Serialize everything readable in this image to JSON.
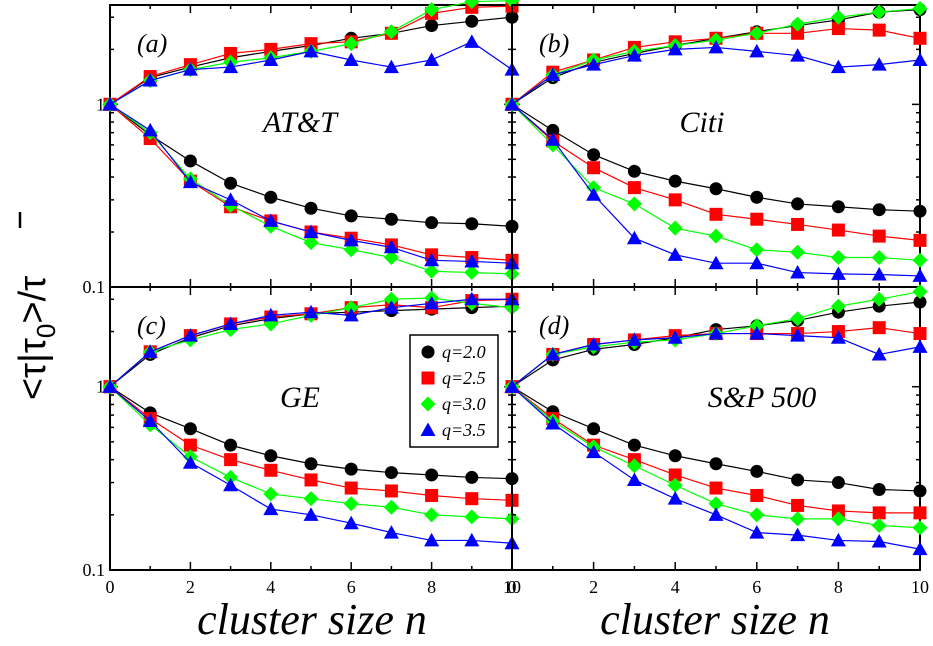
{
  "figure": {
    "ylabel": "<τ|τ0>/τ̄",
    "ylabel_main": "<τ|τ",
    "ylabel_sub": "0",
    "ylabel_tail": ">/τ",
    "xlabel_left": "cluster size n",
    "xlabel_right": "cluster size n"
  },
  "legend": {
    "placement": "inside panel (c), right",
    "entries": [
      {
        "label": "q=2.0",
        "color": "#000000",
        "marker": "circle"
      },
      {
        "label": "q=2.5",
        "color": "#ff0000",
        "marker": "square"
      },
      {
        "label": "q=3.0",
        "color": "#00ff00",
        "marker": "diamond"
      },
      {
        "label": "q=3.5",
        "color": "#0000ff",
        "marker": "triangle"
      }
    ]
  },
  "chart_data": [
    {
      "type": "line",
      "panel_tag": "(a)",
      "name": "AT&T",
      "x": [
        0,
        1,
        2,
        3,
        4,
        5,
        6,
        7,
        8,
        9,
        10
      ],
      "xlim": [
        0,
        10
      ],
      "xticks": [
        "0",
        "2",
        "4",
        "6",
        "8",
        "10"
      ],
      "ylim": [
        0.1,
        3.5
      ],
      "yscale": "log",
      "yticks": [
        "1",
        "0.1"
      ],
      "series": [
        {
          "name": "q=2.0",
          "upper": [
            1,
            1.4,
            1.6,
            1.8,
            1.95,
            2.1,
            2.3,
            2.45,
            2.7,
            2.85,
            3.0
          ],
          "lower": [
            1,
            0.68,
            0.49,
            0.37,
            0.31,
            0.27,
            0.245,
            0.235,
            0.225,
            0.222,
            0.215
          ]
        },
        {
          "name": "q=2.5",
          "upper": [
            1,
            1.42,
            1.65,
            1.9,
            2.0,
            2.15,
            2.2,
            2.45,
            3.15,
            3.4,
            3.45
          ],
          "lower": [
            1,
            0.65,
            0.38,
            0.275,
            0.23,
            0.2,
            0.185,
            0.17,
            0.15,
            0.145,
            0.14
          ]
        },
        {
          "name": "q=3.0",
          "upper": [
            1,
            1.35,
            1.55,
            1.7,
            1.8,
            1.95,
            2.15,
            2.5,
            3.3,
            3.65,
            3.7
          ],
          "lower": [
            1,
            0.7,
            0.39,
            0.28,
            0.215,
            0.175,
            0.16,
            0.145,
            0.122,
            0.12,
            0.118
          ]
        },
        {
          "name": "q=3.5",
          "upper": [
            1,
            1.35,
            1.55,
            1.6,
            1.75,
            1.95,
            1.75,
            1.6,
            1.75,
            2.2,
            1.55
          ],
          "lower": [
            1,
            0.72,
            0.375,
            0.3,
            0.23,
            0.2,
            0.18,
            0.165,
            0.14,
            0.138,
            0.135
          ]
        }
      ]
    },
    {
      "type": "line",
      "panel_tag": "(b)",
      "name": "Citi",
      "x": [
        0,
        1,
        2,
        3,
        4,
        5,
        6,
        7,
        8,
        9,
        10
      ],
      "xlim": [
        0,
        10
      ],
      "xticks": [
        "0",
        "2",
        "4",
        "6",
        "8",
        "10"
      ],
      "ylim": [
        0.1,
        3.5
      ],
      "yscale": "log",
      "series": [
        {
          "name": "q=2.0",
          "upper": [
            1,
            1.4,
            1.7,
            1.9,
            2.1,
            2.3,
            2.5,
            2.7,
            2.9,
            3.2,
            3.3
          ],
          "lower": [
            1,
            0.72,
            0.53,
            0.43,
            0.38,
            0.345,
            0.31,
            0.285,
            0.275,
            0.265,
            0.26
          ]
        },
        {
          "name": "q=2.5",
          "upper": [
            1,
            1.5,
            1.75,
            2.05,
            2.2,
            2.3,
            2.45,
            2.45,
            2.6,
            2.55,
            2.3
          ],
          "lower": [
            1,
            0.63,
            0.45,
            0.35,
            0.3,
            0.25,
            0.235,
            0.22,
            0.205,
            0.19,
            0.18
          ]
        },
        {
          "name": "q=3.0",
          "upper": [
            1,
            1.45,
            1.75,
            1.95,
            2.1,
            2.25,
            2.45,
            2.75,
            3.0,
            3.2,
            3.35
          ],
          "lower": [
            1,
            0.6,
            0.35,
            0.285,
            0.21,
            0.19,
            0.16,
            0.155,
            0.145,
            0.145,
            0.14
          ]
        },
        {
          "name": "q=3.5",
          "upper": [
            1,
            1.45,
            1.65,
            1.85,
            2.0,
            2.05,
            1.95,
            1.85,
            1.6,
            1.65,
            1.75
          ],
          "lower": [
            1,
            0.64,
            0.32,
            0.185,
            0.15,
            0.135,
            0.135,
            0.12,
            0.118,
            0.117,
            0.115
          ]
        }
      ]
    },
    {
      "type": "line",
      "panel_tag": "(c)",
      "name": "GE",
      "x": [
        0,
        1,
        2,
        3,
        4,
        5,
        6,
        7,
        8,
        9,
        10
      ],
      "xlim": [
        0,
        10
      ],
      "xticks": [
        "0",
        "2",
        "4",
        "6",
        "8",
        "10"
      ],
      "ylim": [
        0.1,
        3.5
      ],
      "yscale": "log",
      "yticks": [
        "1",
        "0.1"
      ],
      "series": [
        {
          "name": "q=2.0",
          "upper": [
            1,
            1.5,
            1.85,
            2.15,
            2.35,
            2.5,
            2.55,
            2.6,
            2.65,
            2.7,
            2.75
          ],
          "lower": [
            1,
            0.72,
            0.59,
            0.48,
            0.42,
            0.38,
            0.355,
            0.34,
            0.33,
            0.32,
            0.315
          ]
        },
        {
          "name": "q=2.5",
          "upper": [
            1,
            1.55,
            1.9,
            2.2,
            2.4,
            2.5,
            2.7,
            2.8,
            2.7,
            2.95,
            3.0
          ],
          "lower": [
            1,
            0.67,
            0.48,
            0.4,
            0.35,
            0.31,
            0.28,
            0.27,
            0.255,
            0.245,
            0.24
          ]
        },
        {
          "name": "q=3.0",
          "upper": [
            1,
            1.55,
            1.8,
            2.05,
            2.2,
            2.45,
            2.7,
            3.0,
            3.05,
            2.85,
            2.7
          ],
          "lower": [
            1,
            0.62,
            0.415,
            0.32,
            0.26,
            0.245,
            0.23,
            0.22,
            0.2,
            0.195,
            0.19
          ]
        },
        {
          "name": "q=3.5",
          "upper": [
            1,
            1.55,
            1.9,
            2.2,
            2.45,
            2.55,
            2.45,
            2.7,
            2.85,
            3.0,
            3.0
          ],
          "lower": [
            1,
            0.65,
            0.385,
            0.29,
            0.215,
            0.2,
            0.18,
            0.16,
            0.145,
            0.145,
            0.14
          ]
        }
      ]
    },
    {
      "type": "line",
      "panel_tag": "(d)",
      "name": "S&P 500",
      "x": [
        0,
        1,
        2,
        3,
        4,
        5,
        6,
        7,
        8,
        9,
        10
      ],
      "xlim": [
        0,
        10
      ],
      "xticks": [
        "0",
        "2",
        "4",
        "6",
        "8",
        "10"
      ],
      "ylim": [
        0.1,
        3.5
      ],
      "yscale": "log",
      "series": [
        {
          "name": "q=2.0",
          "upper": [
            1,
            1.4,
            1.6,
            1.7,
            1.85,
            2.05,
            2.15,
            2.3,
            2.55,
            2.75,
            2.9
          ],
          "lower": [
            1,
            0.73,
            0.59,
            0.48,
            0.42,
            0.38,
            0.345,
            0.31,
            0.3,
            0.275,
            0.27
          ]
        },
        {
          "name": "q=2.5",
          "upper": [
            1,
            1.5,
            1.7,
            1.8,
            1.9,
            1.95,
            1.95,
            1.95,
            2.0,
            2.1,
            1.95
          ],
          "lower": [
            1,
            0.67,
            0.48,
            0.4,
            0.33,
            0.28,
            0.255,
            0.225,
            0.21,
            0.205,
            0.205
          ]
        },
        {
          "name": "q=3.0",
          "upper": [
            1,
            1.5,
            1.65,
            1.75,
            1.8,
            1.95,
            2.15,
            2.35,
            2.75,
            3.0,
            3.3
          ],
          "lower": [
            1,
            0.65,
            0.47,
            0.37,
            0.29,
            0.23,
            0.2,
            0.19,
            0.19,
            0.175,
            0.17
          ]
        },
        {
          "name": "q=3.5",
          "upper": [
            1,
            1.5,
            1.7,
            1.8,
            1.85,
            1.95,
            1.95,
            1.9,
            1.85,
            1.5,
            1.65
          ],
          "lower": [
            1,
            0.63,
            0.44,
            0.31,
            0.245,
            0.2,
            0.16,
            0.155,
            0.145,
            0.143,
            0.13
          ]
        }
      ]
    }
  ]
}
